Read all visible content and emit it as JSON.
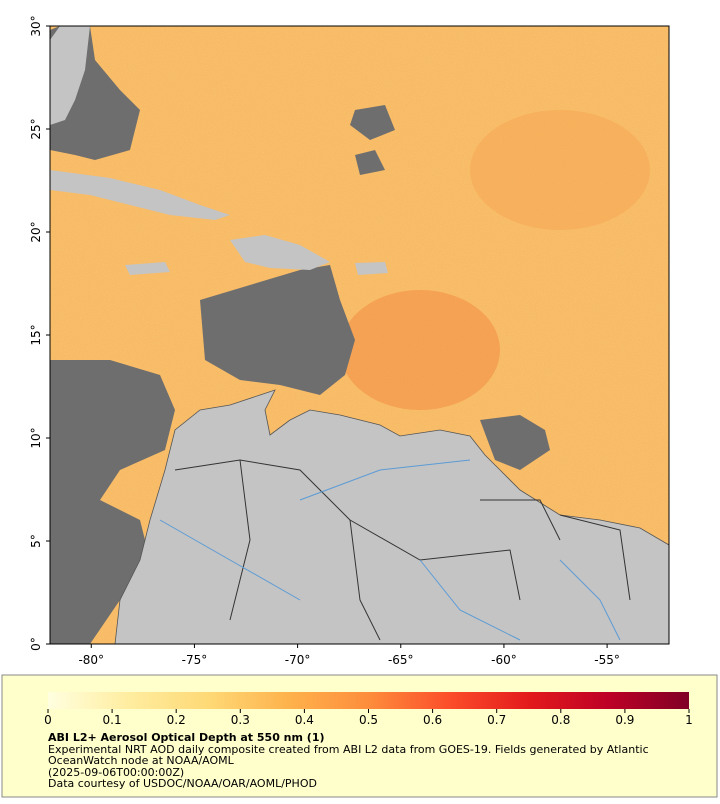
{
  "map": {
    "xlim": [
      -82,
      -52
    ],
    "ylim": [
      0,
      30
    ],
    "xticks": [
      {
        "value": -80,
        "label": "-80°"
      },
      {
        "value": -75,
        "label": "-75°"
      },
      {
        "value": -70,
        "label": "-70°"
      },
      {
        "value": -65,
        "label": "-65°"
      },
      {
        "value": -60,
        "label": "-60°"
      },
      {
        "value": -55,
        "label": "-55°"
      }
    ],
    "yticks": [
      {
        "value": 0,
        "label": "0°"
      },
      {
        "value": 5,
        "label": "5°"
      },
      {
        "value": 10,
        "label": "10°"
      },
      {
        "value": 15,
        "label": "15°"
      },
      {
        "value": 20,
        "label": "20°"
      },
      {
        "value": 25,
        "label": "25°"
      },
      {
        "value": 30,
        "label": "30°"
      }
    ]
  },
  "colorbar": {
    "lim": [
      0,
      1
    ],
    "ticks": [
      0,
      0.1,
      0.2,
      0.3,
      0.4,
      0.5,
      0.6,
      0.7,
      0.8,
      0.9,
      1
    ],
    "colors": [
      "#ffffe0",
      "#ffeda0",
      "#fed976",
      "#feb24c",
      "#fd8d3c",
      "#fc4e2a",
      "#e31a1c",
      "#bd0026",
      "#800026"
    ]
  },
  "caption": {
    "title": "ABI L2+ Aerosol Optical Depth at 550 nm (1)",
    "line1": "Experimental NRT AOD daily composite created from ABI L2 data from GOES-19. Fields generated by Atlantic",
    "line2": "OceanWatch node at NOAA/AOML",
    "line3": "(2025-09-06T00:00:00Z)",
    "line4": "Data courtesy of USDOC/NOAA/OAR/AOML/PHOD"
  }
}
